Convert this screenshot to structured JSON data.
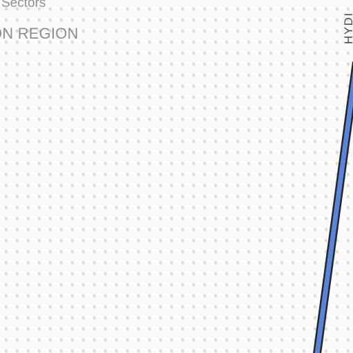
{
  "map": {
    "labels": {
      "sectors": "Sectors",
      "region": "ON REGION",
      "road": "HYDI"
    },
    "colors": {
      "background": "#fbfbf9",
      "dot_grid": "#dcdcd2",
      "road_fill": "#5b84d4",
      "road_casing": "#1f2430",
      "label_text": "#8a8a8a"
    }
  }
}
